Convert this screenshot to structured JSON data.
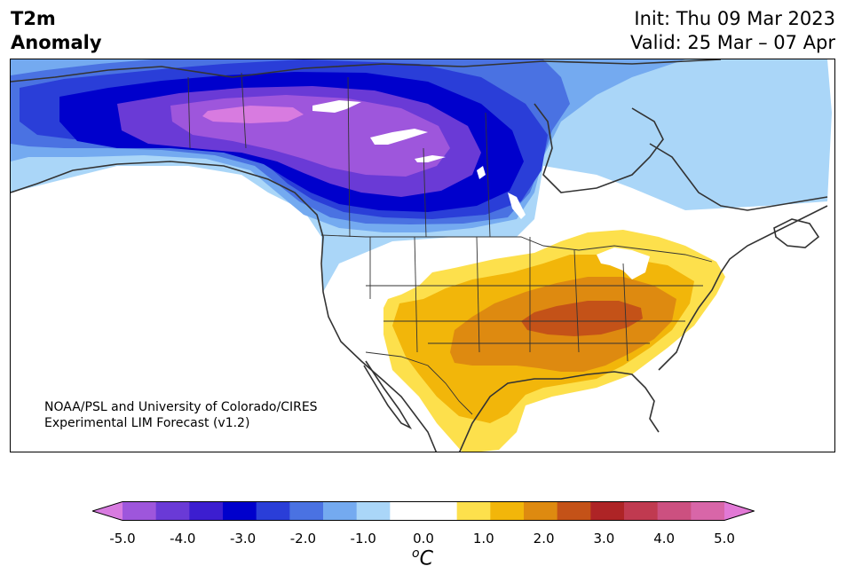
{
  "title": {
    "line1": "T2m",
    "line2": "Anomaly"
  },
  "dates": {
    "init": "Init: Thu 09 Mar 2023",
    "valid": "Valid: 25 Mar – 07 Apr"
  },
  "credit": {
    "line1": "NOAA/PSL and University of Colorado/CIRES",
    "line2": "Experimental LIM Forecast (v1.2)"
  },
  "colorbar": {
    "colors": [
      "#d87be0",
      "#9e56dc",
      "#6a3ad6",
      "#3c1ed0",
      "#0000cc",
      "#2a3ed8",
      "#4a72e2",
      "#74aaf0",
      "#aad6f8",
      "#ffffff",
      "#ffffff",
      "#fde04c",
      "#f2b60a",
      "#de8a10",
      "#c45218",
      "#ae2426",
      "#c03a50",
      "#cc5080",
      "#d866a8",
      "#e279d6"
    ],
    "ticks": [
      "-5.0",
      "-4.0",
      "-3.0",
      "-2.0",
      "-1.0",
      "0.0",
      "1.0",
      "2.0",
      "3.0",
      "4.0",
      "5.0"
    ],
    "unit_sup": "o",
    "unit_main": "C"
  },
  "map": {
    "cold_anomaly_colors": [
      "#aad6f8",
      "#74aaf0",
      "#4a72e2",
      "#2a3ed8",
      "#0000cc",
      "#6a3ad6",
      "#9e56dc",
      "#d87be0"
    ],
    "warm_anomaly_colors": [
      "#fde04c",
      "#f2b60a",
      "#de8a10",
      "#c45218"
    ],
    "coast_color": "#333333"
  }
}
